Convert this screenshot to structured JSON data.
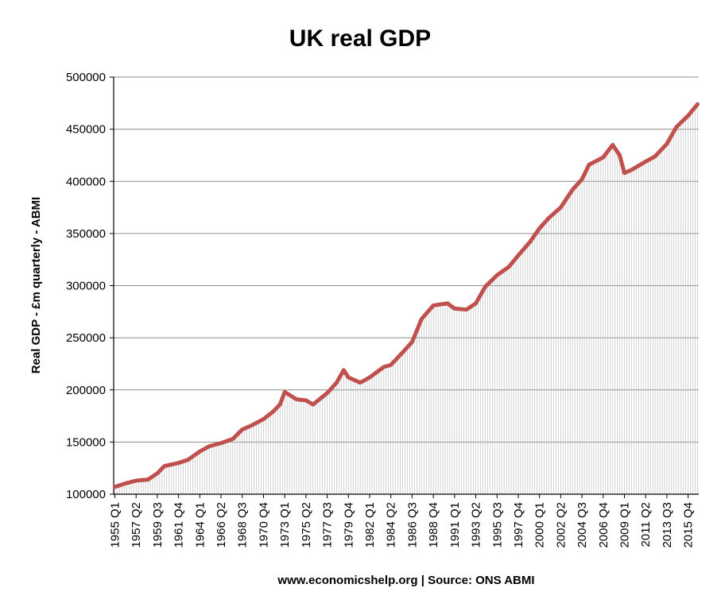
{
  "chart_data": {
    "type": "area",
    "title": "UK real GDP",
    "ylabel": "Real GDP - £m quarterly  - ABMI",
    "xlabel": "www.economicshelp.org | Source: ONS ABMI",
    "ylim": [
      100000,
      500000
    ],
    "yticks": [
      100000,
      150000,
      200000,
      250000,
      300000,
      350000,
      400000,
      450000,
      500000
    ],
    "x_tick_labels": [
      "1955 Q1",
      "1957 Q2",
      "1959 Q3",
      "1961 Q4",
      "1964 Q1",
      "1966 Q2",
      "1968 Q3",
      "1970 Q4",
      "1973 Q1",
      "1975 Q2",
      "1977 Q3",
      "1979 Q4",
      "1982 Q1",
      "1984 Q2",
      "1986 Q3",
      "1988 Q4",
      "1991 Q1",
      "1993 Q2",
      "1995 Q3",
      "1997 Q4",
      "2000 Q1",
      "2002 Q2",
      "2004 Q3",
      "2006 Q4",
      "2009 Q1",
      "2011 Q2",
      "2013 Q3",
      "2015 Q4"
    ],
    "x_start": "1955 Q1",
    "x_end": "2016 Q4",
    "grid": true,
    "colors": {
      "line": "#c0504d",
      "fill_lines": "#bfbfbf",
      "grid": "#8c8c8c",
      "axis": "#000000"
    },
    "series": [
      {
        "name": "",
        "points": [
          [
            "1955 Q1",
            107000
          ],
          [
            "1956 Q1",
            110000
          ],
          [
            "1957 Q2",
            113000
          ],
          [
            "1958 Q3",
            114000
          ],
          [
            "1959 Q3",
            120000
          ],
          [
            "1960 Q2",
            127000
          ],
          [
            "1961 Q4",
            130000
          ],
          [
            "1962 Q4",
            133000
          ],
          [
            "1964 Q1",
            141000
          ],
          [
            "1965 Q1",
            146000
          ],
          [
            "1966 Q2",
            149000
          ],
          [
            "1967 Q3",
            153000
          ],
          [
            "1968 Q3",
            162000
          ],
          [
            "1969 Q3",
            166000
          ],
          [
            "1970 Q4",
            172000
          ],
          [
            "1971 Q4",
            179000
          ],
          [
            "1972 Q3",
            186000
          ],
          [
            "1973 Q1",
            198000
          ],
          [
            "1974 Q2",
            191000
          ],
          [
            "1975 Q2",
            190000
          ],
          [
            "1976 Q1",
            186000
          ],
          [
            "1977 Q3",
            197000
          ],
          [
            "1978 Q3",
            207000
          ],
          [
            "1979 Q2",
            219000
          ],
          [
            "1979 Q4",
            212000
          ],
          [
            "1981 Q1",
            207000
          ],
          [
            "1982 Q1",
            212000
          ],
          [
            "1983 Q3",
            222000
          ],
          [
            "1984 Q2",
            224000
          ],
          [
            "1985 Q3",
            236000
          ],
          [
            "1986 Q3",
            246000
          ],
          [
            "1987 Q3",
            268000
          ],
          [
            "1988 Q4",
            281000
          ],
          [
            "1990 Q2",
            283000
          ],
          [
            "1991 Q1",
            278000
          ],
          [
            "1992 Q2",
            277000
          ],
          [
            "1993 Q2",
            283000
          ],
          [
            "1994 Q2",
            299000
          ],
          [
            "1995 Q3",
            310000
          ],
          [
            "1996 Q4",
            318000
          ],
          [
            "1997 Q4",
            329000
          ],
          [
            "1999 Q1",
            342000
          ],
          [
            "2000 Q1",
            355000
          ],
          [
            "2001 Q1",
            365000
          ],
          [
            "2002 Q2",
            375000
          ],
          [
            "2003 Q3",
            392000
          ],
          [
            "2004 Q3",
            402000
          ],
          [
            "2005 Q2",
            416000
          ],
          [
            "2006 Q4",
            423000
          ],
          [
            "2007 Q4",
            435000
          ],
          [
            "2008 Q3",
            425000
          ],
          [
            "2009 Q1",
            408000
          ],
          [
            "2009 Q4",
            411000
          ],
          [
            "2011 Q2",
            419000
          ],
          [
            "2012 Q2",
            424000
          ],
          [
            "2013 Q3",
            436000
          ],
          [
            "2014 Q3",
            452000
          ],
          [
            "2015 Q4",
            463000
          ],
          [
            "2016 Q4",
            474000
          ]
        ]
      }
    ]
  }
}
